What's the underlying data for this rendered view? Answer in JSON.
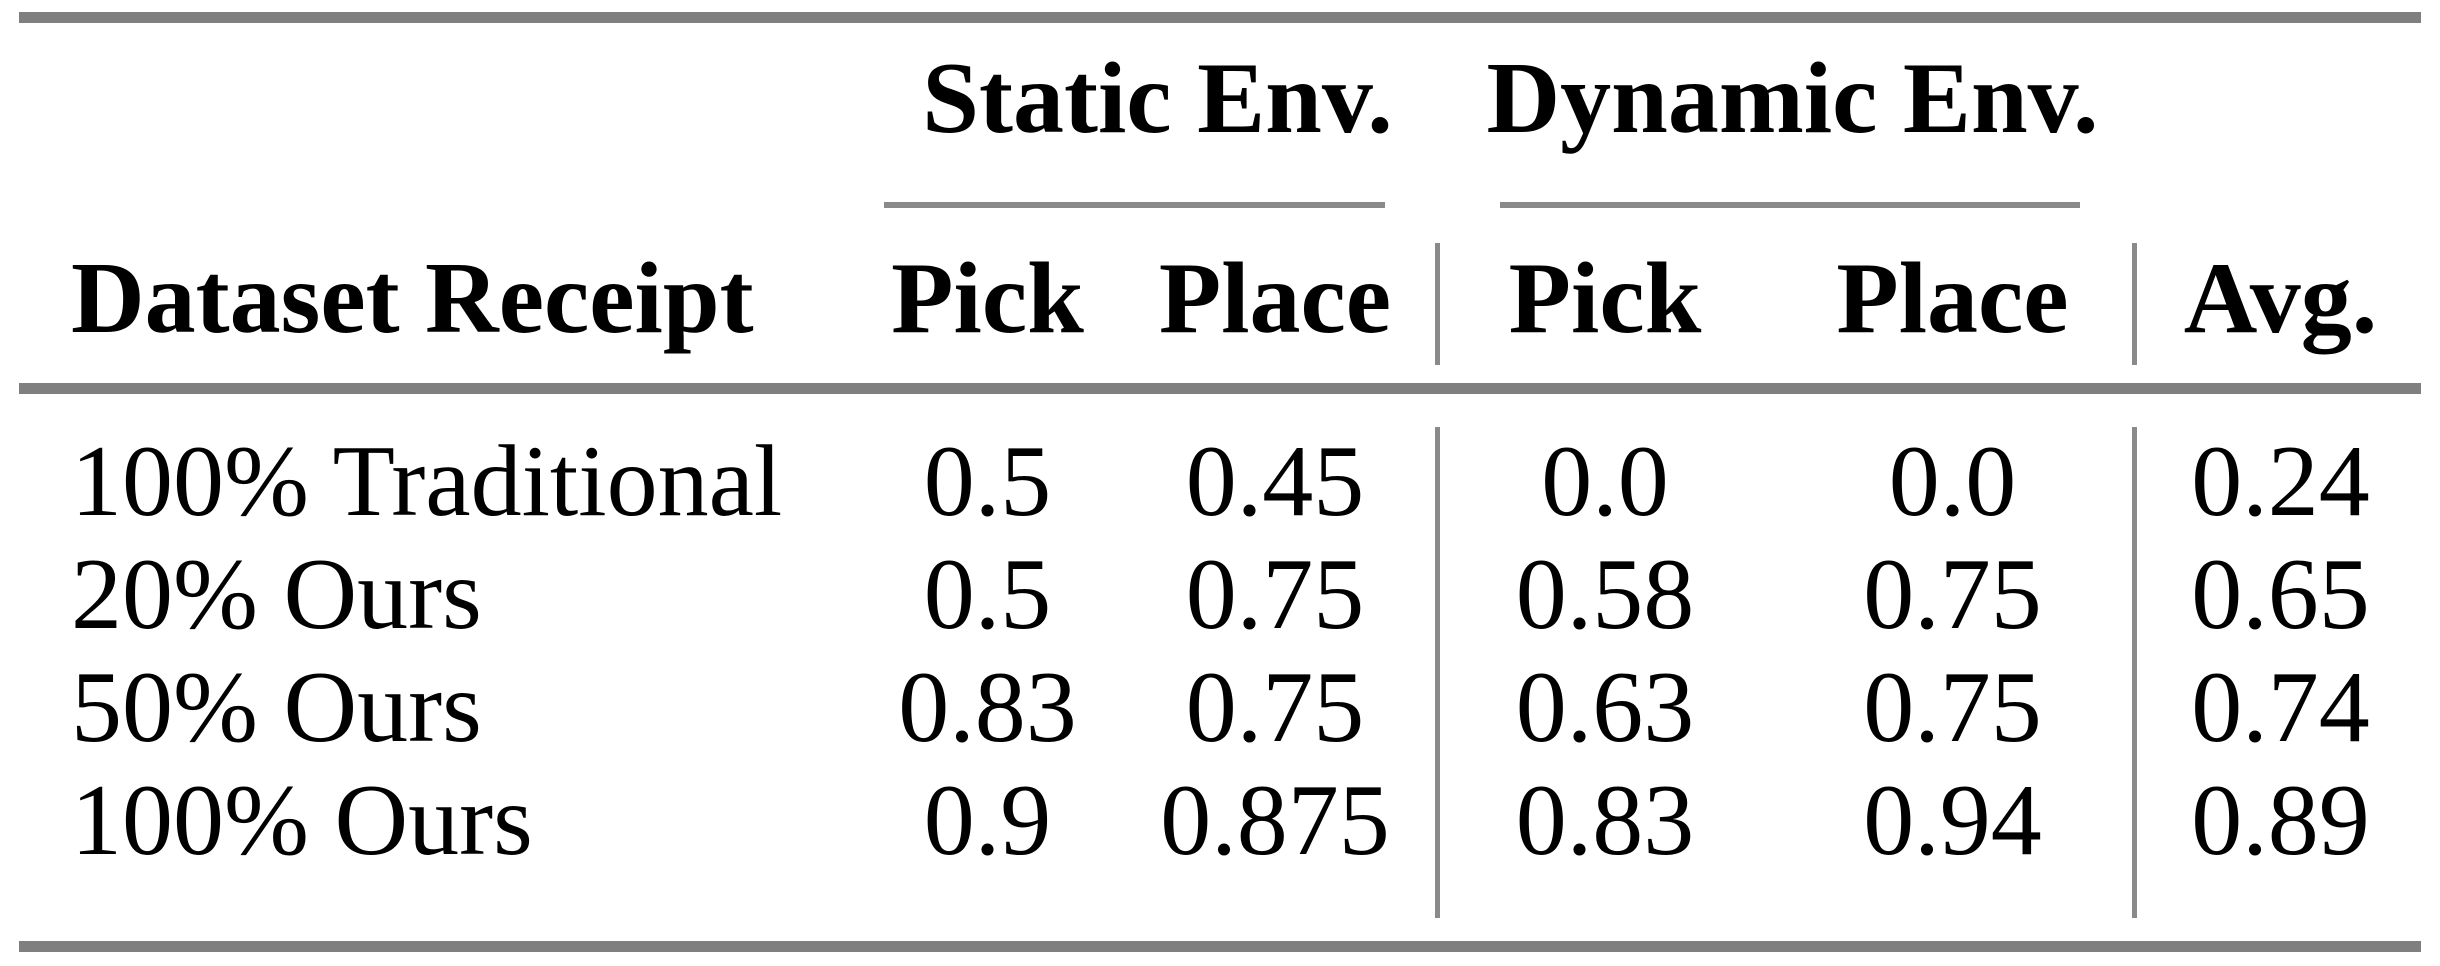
{
  "table": {
    "column_groups": [
      {
        "label": "Static Env.",
        "columns": [
          "Pick",
          "Place"
        ]
      },
      {
        "label": "Dynamic Env.",
        "columns": [
          "Pick",
          "Place"
        ]
      }
    ],
    "header": {
      "row_label": "Dataset Receipt",
      "columns": [
        "Pick",
        "Place",
        "Pick",
        "Place",
        "Avg."
      ]
    },
    "rows": [
      {
        "label": "100% Traditional",
        "values": [
          "0.5",
          "0.45",
          "0.0",
          "0.0",
          "0.24"
        ]
      },
      {
        "label": "20% Ours",
        "values": [
          "0.5",
          "0.75",
          "0.58",
          "0.75",
          "0.65"
        ]
      },
      {
        "label": "50% Ours",
        "values": [
          "0.83",
          "0.75",
          "0.63",
          "0.75",
          "0.74"
        ]
      },
      {
        "label": "100% Ours",
        "values": [
          "0.9",
          "0.875",
          "0.83",
          "0.94",
          "0.89"
        ]
      }
    ],
    "colors": {
      "thick_rule": "#7f7f7f",
      "thin_rule": "#8a8a8a",
      "text": "#000000",
      "background": "#ffffff"
    }
  }
}
